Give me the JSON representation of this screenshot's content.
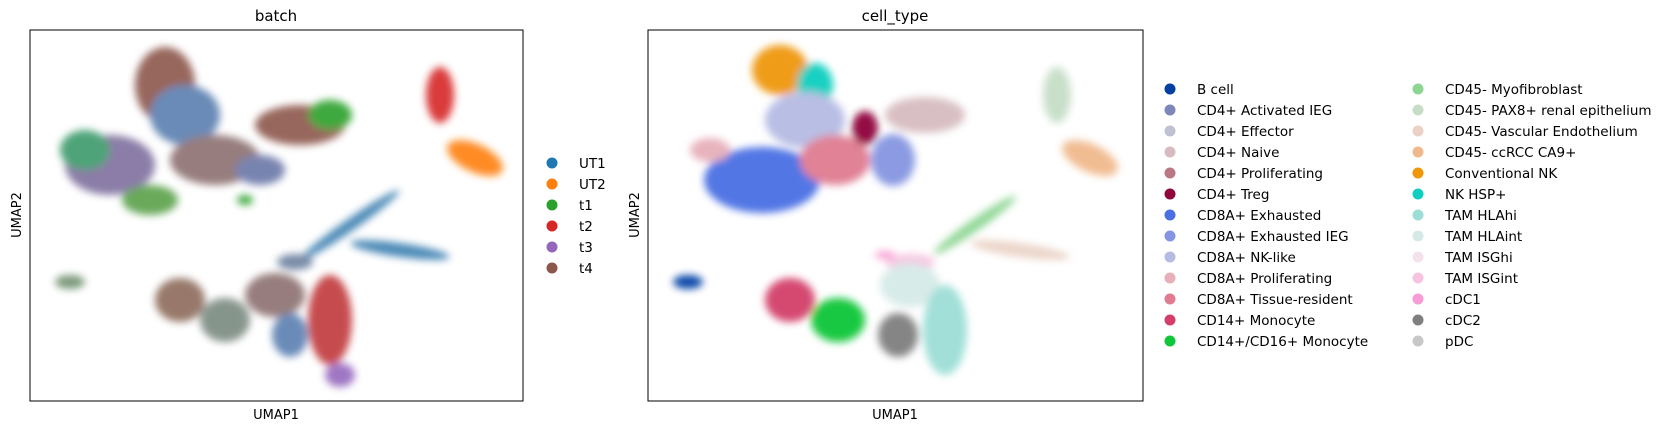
{
  "chart_data": [
    {
      "type": "scatter",
      "title": "batch",
      "xlabel": "UMAP1",
      "ylabel": "UMAP2",
      "grid": false,
      "legend_placement": "right",
      "series": [
        {
          "name": "UT1",
          "color": "#1f77b4"
        },
        {
          "name": "UT2",
          "color": "#ff7f0e"
        },
        {
          "name": "t1",
          "color": "#2ca02c"
        },
        {
          "name": "t2",
          "color": "#d62728"
        },
        {
          "name": "t3",
          "color": "#9467bd"
        },
        {
          "name": "t4",
          "color": "#8c564b"
        }
      ]
    },
    {
      "type": "scatter",
      "title": "cell_type",
      "xlabel": "UMAP1",
      "ylabel": "UMAP2",
      "grid": false,
      "legend_placement": "right",
      "series": [
        {
          "name": "B cell",
          "color": "#023fa5"
        },
        {
          "name": "CD4+ Activated IEG",
          "color": "#7d87b9"
        },
        {
          "name": "CD4+ Effector",
          "color": "#bec1d4"
        },
        {
          "name": "CD4+ Naive",
          "color": "#d6bcc0"
        },
        {
          "name": "CD4+ Proliferating",
          "color": "#bb7784"
        },
        {
          "name": "CD4+ Treg",
          "color": "#8e063b"
        },
        {
          "name": "CD8A+ Exhausted",
          "color": "#4a6fe3"
        },
        {
          "name": "CD8A+ Exhausted IEG",
          "color": "#8595e1"
        },
        {
          "name": "CD8A+ NK-like",
          "color": "#b5bbe3"
        },
        {
          "name": "CD8A+ Proliferating",
          "color": "#e6afb9"
        },
        {
          "name": "CD8A+ Tissue-resident",
          "color": "#e07b91"
        },
        {
          "name": "CD14+ Monocyte",
          "color": "#d33f6a"
        },
        {
          "name": "CD14+/CD16+ Monocyte",
          "color": "#11c638"
        },
        {
          "name": "CD45- Myofibroblast",
          "color": "#8dd593"
        },
        {
          "name": "CD45- PAX8+ renal epithelium",
          "color": "#c6dec7"
        },
        {
          "name": "CD45- Vascular Endothelium",
          "color": "#ead3c6"
        },
        {
          "name": "CD45- ccRCC CA9+",
          "color": "#f0b98d"
        },
        {
          "name": "Conventional NK",
          "color": "#ef9708"
        },
        {
          "name": "NK HSP+",
          "color": "#0fcfc0"
        },
        {
          "name": "TAM HLAhi",
          "color": "#9cded6"
        },
        {
          "name": "TAM HLAint",
          "color": "#d5eae7"
        },
        {
          "name": "TAM ISGhi",
          "color": "#f3e1eb"
        },
        {
          "name": "TAM ISGint",
          "color": "#f6c4e1"
        },
        {
          "name": "cDC1",
          "color": "#f79cd4"
        },
        {
          "name": "cDC2",
          "color": "#7f7f7f"
        },
        {
          "name": "pDC",
          "color": "#c7c7c7"
        }
      ]
    }
  ]
}
